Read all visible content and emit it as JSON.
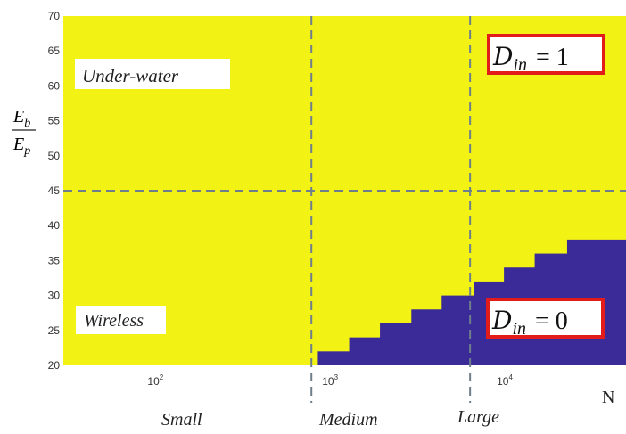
{
  "chart_data": {
    "type": "heatmap",
    "x_scale": "log",
    "xlim": [
      30,
      50000
    ],
    "ylim": [
      20,
      70
    ],
    "yticks": [
      20,
      25,
      30,
      35,
      40,
      45,
      50,
      55,
      60,
      65,
      70
    ],
    "ytick_labels": [
      "20",
      "25",
      "30",
      "35",
      "40",
      "45",
      "50",
      "55",
      "60",
      "65",
      "70"
    ],
    "xticks": [
      {
        "value": 100,
        "base": "10",
        "exp": "2"
      },
      {
        "value": 1000,
        "base": "10",
        "exp": "3"
      },
      {
        "value": 10000,
        "base": "10",
        "exp": "4"
      }
    ],
    "xlabel": "N",
    "ylabel": {
      "num": "E",
      "num_sub": "b",
      "den": "E",
      "den_sub": "p"
    },
    "colors": {
      "region_one": "#f2f215",
      "region_zero": "#3a2b98",
      "dashed": "#6e7f8c",
      "box_border": "#e21b1b"
    },
    "regions": {
      "one_label": {
        "symbol": "D",
        "sub": "in",
        "eq": "= 1"
      },
      "zero_label": {
        "symbol": "D",
        "sub": "in",
        "eq": "= 0"
      }
    },
    "boundary_steps": [
      {
        "x_from": 860,
        "x_to": 1300,
        "y": 22
      },
      {
        "x_from": 1300,
        "x_to": 1950,
        "y": 24
      },
      {
        "x_from": 1950,
        "x_to": 2950,
        "y": 26
      },
      {
        "x_from": 2950,
        "x_to": 4400,
        "y": 28
      },
      {
        "x_from": 4400,
        "x_to": 6700,
        "y": 30
      },
      {
        "x_from": 6700,
        "x_to": 10000,
        "y": 32
      },
      {
        "x_from": 10000,
        "x_to": 15000,
        "y": 34
      },
      {
        "x_from": 15000,
        "x_to": 23000,
        "y": 36
      },
      {
        "x_from": 23000,
        "x_to": 50000,
        "y": 38
      }
    ],
    "dashed_vertical_x": [
      790,
      6400
    ],
    "dashed_horizontal_y": 45,
    "zone_labels": [
      "Small",
      "Medium",
      "Large"
    ],
    "annotations": [
      "Under-water",
      "Wireless"
    ]
  }
}
